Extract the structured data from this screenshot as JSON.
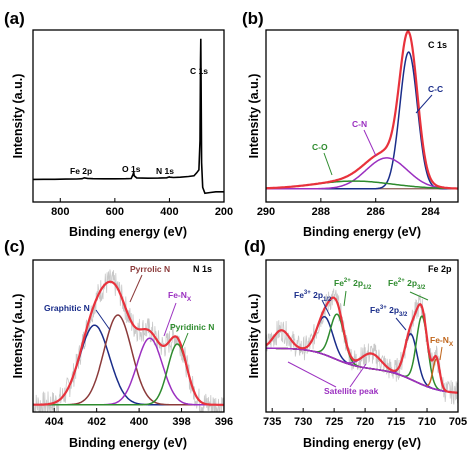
{
  "chart_data": [
    {
      "panel": "(a)",
      "type": "line",
      "xlabel": "Binding energy (eV)",
      "ylabel": "Intensity (a.u.)",
      "xlim": [
        900,
        200
      ],
      "x_reversed": true,
      "xticks": [
        800,
        600,
        400,
        200
      ],
      "yticks_shown": false,
      "annotations": [
        {
          "text": "Fe 2p",
          "x": 712
        },
        {
          "text": "O 1s",
          "x": 531
        },
        {
          "text": "N 1s",
          "x": 399
        },
        {
          "text": "C 1s",
          "x": 285
        }
      ],
      "series": [
        {
          "color": "#000000",
          "x": [
            900,
            860,
            820,
            780,
            740,
            720,
            712,
            700,
            680,
            640,
            600,
            560,
            540,
            533,
            531,
            529,
            520,
            480,
            440,
            410,
            400,
            398,
            385,
            360,
            330,
            310,
            300,
            292,
            288,
            286,
            285,
            284,
            282,
            278,
            270,
            250,
            230,
            200
          ],
          "y": [
            0.035,
            0.036,
            0.036,
            0.037,
            0.038,
            0.04,
            0.046,
            0.042,
            0.04,
            0.039,
            0.039,
            0.04,
            0.041,
            0.07,
            0.085,
            0.06,
            0.045,
            0.043,
            0.044,
            0.046,
            0.052,
            0.05,
            0.048,
            0.05,
            0.055,
            0.06,
            0.08,
            0.1,
            0.3,
            0.85,
            1.0,
            0.7,
            0.15,
            -0.02,
            -0.06,
            -0.055,
            -0.05,
            -0.05
          ]
        }
      ]
    },
    {
      "panel": "(b)",
      "type": "line",
      "title": "C 1s",
      "xlabel": "Binding energy (eV)",
      "ylabel": "Intensity (a.u.)",
      "xlim": [
        290,
        283
      ],
      "x_reversed": true,
      "xticks": [
        290,
        288,
        286,
        284
      ],
      "annotations": [
        {
          "text": "C-O",
          "color": "#2e8b2e"
        },
        {
          "text": "C-N",
          "color": "#9b30c0"
        },
        {
          "text": "C-C",
          "color": "#1a2d8a"
        }
      ],
      "series": [
        {
          "name": "C-C",
          "color": "#1a2d8a",
          "type": "gaussian",
          "center": 284.8,
          "height": 0.62,
          "width": 0.32,
          "baseline": 0.06
        },
        {
          "name": "C-N",
          "color": "#9b30c0",
          "type": "gaussian",
          "center": 285.6,
          "height": 0.14,
          "width": 0.75,
          "baseline": 0.06
        },
        {
          "name": "C-O",
          "color": "#2e8b2e",
          "type": "gaussian",
          "center": 286.8,
          "height": 0.035,
          "width": 1.4,
          "baseline": 0.06
        },
        {
          "name": "envelope",
          "color": "#e8323c",
          "type": "sum_with_baseline",
          "baseline": 0.06
        },
        {
          "name": "background",
          "color": "#8a5a52",
          "type": "flat",
          "value": 0.06
        }
      ]
    },
    {
      "panel": "(c)",
      "type": "line",
      "title": "N 1s",
      "xlabel": "Binding energy (eV)",
      "ylabel": "Intensity (a.u.)",
      "xlim": [
        405,
        396
      ],
      "x_reversed": true,
      "xticks": [
        404,
        402,
        400,
        398,
        396
      ],
      "annotations": [
        {
          "text": "Graphitic N",
          "color": "#1a2d8a"
        },
        {
          "text": "Pyrrolic N",
          "color": "#8b3a3a"
        },
        {
          "text": "Fe-N",
          "sub": "X",
          "color": "#9b30c0"
        },
        {
          "text": "Pyridinic N",
          "color": "#2e8b2e"
        }
      ],
      "series": [
        {
          "name": "Graphitic N",
          "color": "#1a2d8a",
          "type": "gaussian",
          "center": 402.1,
          "height": 0.55,
          "width": 0.7,
          "baseline": 0.05
        },
        {
          "name": "Pyrrolic N",
          "color": "#8b3a3a",
          "type": "gaussian",
          "center": 401.0,
          "height": 0.62,
          "width": 0.65,
          "baseline": 0.05
        },
        {
          "name": "Fe-Nx",
          "color": "#9b30c0",
          "type": "gaussian",
          "center": 399.5,
          "height": 0.46,
          "width": 0.6,
          "baseline": 0.05
        },
        {
          "name": "Pyridinic N",
          "color": "#2e8b2e",
          "type": "gaussian",
          "center": 398.2,
          "height": 0.42,
          "width": 0.45,
          "baseline": 0.05
        },
        {
          "name": "raw data",
          "color": "#c8c8c8",
          "type": "noisy_sum",
          "noise": 0.09,
          "baseline": 0.05
        },
        {
          "name": "envelope",
          "color": "#e8323c",
          "type": "sum_with_baseline",
          "baseline": 0.05
        }
      ]
    },
    {
      "panel": "(d)",
      "type": "line",
      "title": "Fe 2p",
      "xlabel": "Binding energy (eV)",
      "ylabel": "Intensity (a.u.)",
      "xlim": [
        736,
        705
      ],
      "x_reversed": true,
      "xticks": [
        735,
        730,
        725,
        720,
        715,
        710,
        705
      ],
      "annotations": [
        {
          "text": "Fe",
          "sup": "3+",
          "tail": " 2p",
          "sub": "1/2",
          "color": "#1a2d8a"
        },
        {
          "text": "Fe",
          "sup": "2+",
          "tail": " 2p",
          "sub": "1/2",
          "color": "#2e8b2e"
        },
        {
          "text": "Fe",
          "sup": "2+",
          "tail": " 2p",
          "sub": "3/2",
          "color": "#2e8b2e"
        },
        {
          "text": "Fe",
          "sup": "3+",
          "tail": " 2p",
          "sub": "3/2",
          "color": "#1a2d8a"
        },
        {
          "text": "Fe-N",
          "sub": "X",
          "color": "#c0661c"
        },
        {
          "text": "Satellite peak",
          "color": "#9b30c0"
        }
      ],
      "series": [
        {
          "name": "Fe3+ 2p1/2",
          "color": "#1a2d8a",
          "type": "gaussian",
          "center": 726.5,
          "height": 0.25,
          "width": 1.3
        },
        {
          "name": "Fe2+ 2p1/2",
          "color": "#2e8b2e",
          "type": "gaussian",
          "center": 724.5,
          "height": 0.3,
          "width": 1.1
        },
        {
          "name": "Fe3+ 2p3/2",
          "color": "#1a2d8a",
          "type": "gaussian",
          "center": 712.6,
          "height": 0.3,
          "width": 1.0
        },
        {
          "name": "Fe2+ 2p3/2",
          "color": "#2e8b2e",
          "type": "gaussian",
          "center": 710.8,
          "height": 0.45,
          "width": 0.9
        },
        {
          "name": "Fe-Nx",
          "color": "#c0661c",
          "type": "gaussian",
          "center": 708.5,
          "height": 0.2,
          "width": 0.55
        },
        {
          "name": "Satellite peak 1",
          "color": "#9b30c0",
          "type": "gaussian",
          "center": 733.5,
          "height": 0.12,
          "width": 1.3
        },
        {
          "name": "Satellite peak 2",
          "color": "#9b30c0",
          "type": "gaussian",
          "center": 719.0,
          "height": 0.1,
          "width": 1.6
        },
        {
          "name": "background",
          "color": "#8a5a52",
          "type": "shirley"
        },
        {
          "name": "raw data",
          "color": "#c8c8c8",
          "type": "noisy_sum",
          "noise": 0.08
        },
        {
          "name": "envelope",
          "color": "#e8323c",
          "type": "sum_with_background"
        }
      ]
    }
  ]
}
